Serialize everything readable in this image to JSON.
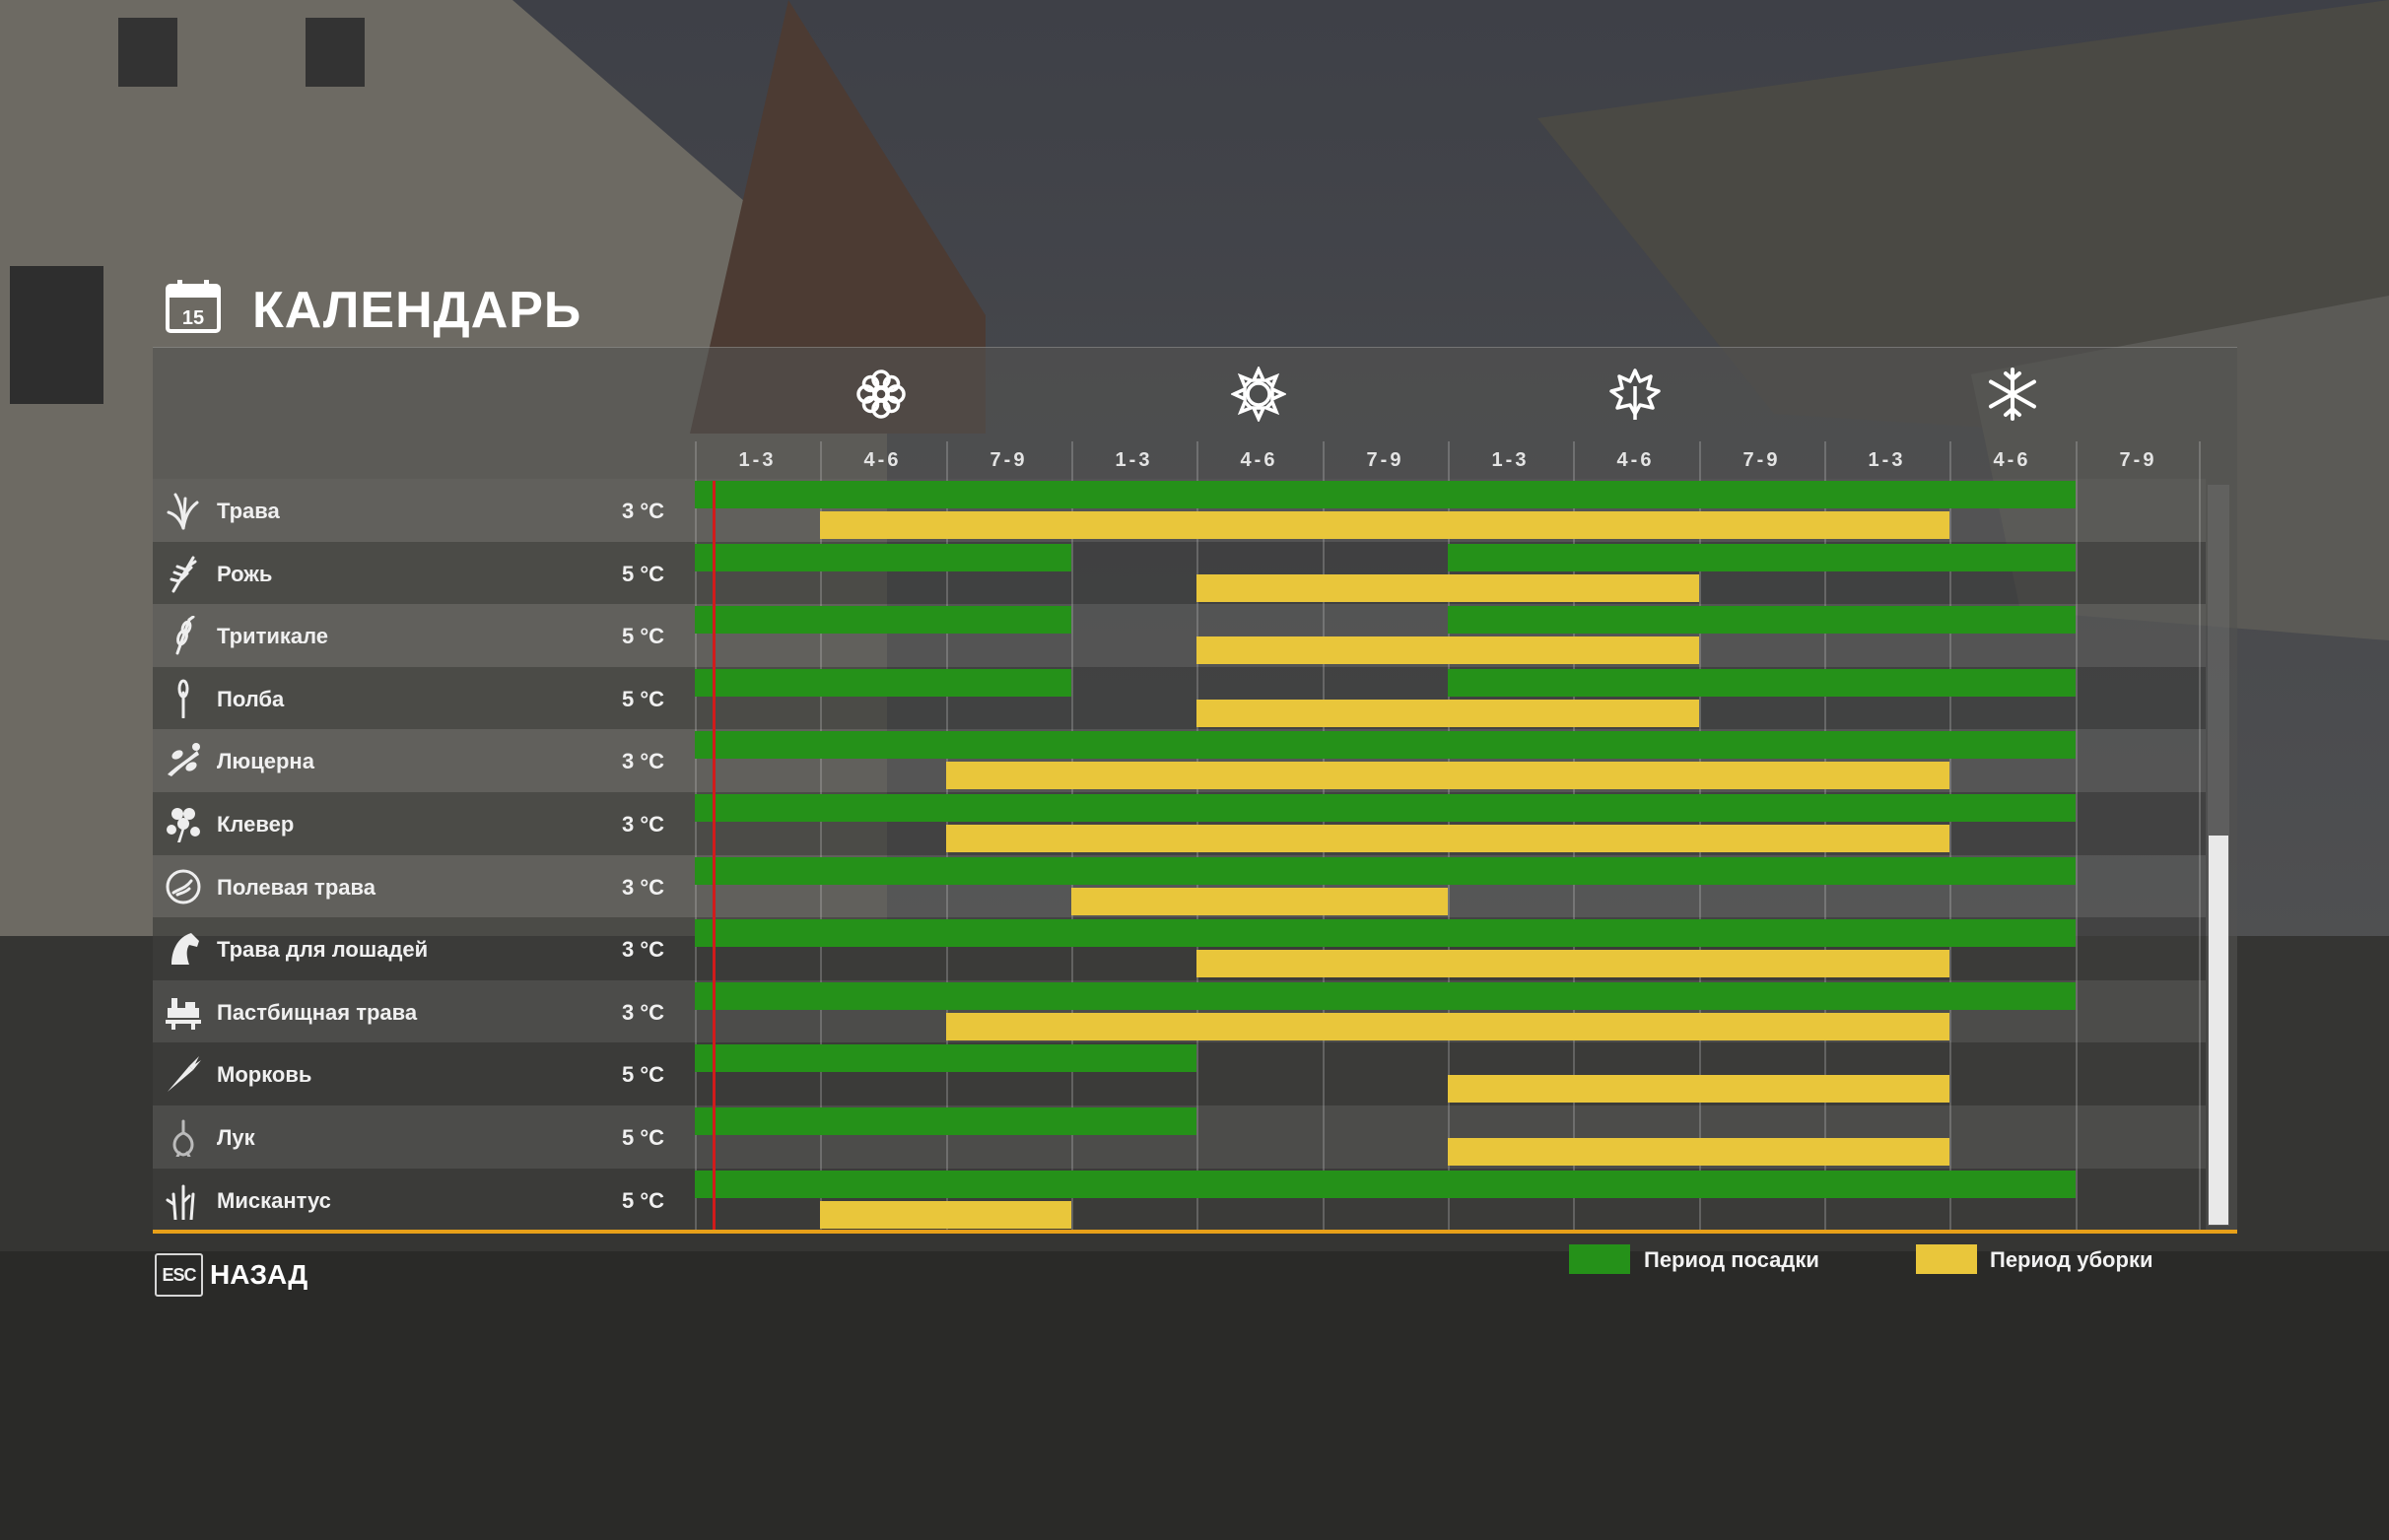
{
  "page": {
    "title": "КАЛЕНДАРЬ",
    "title_icon": "calendar-icon",
    "calendar_icon_day": "15",
    "back_key": "ESC",
    "back_label": "НАЗАД"
  },
  "seasons": [
    {
      "icon": "spring-flower-icon",
      "periods": [
        "1-3",
        "4-6",
        "7-9"
      ]
    },
    {
      "icon": "summer-sun-icon",
      "periods": [
        "1-3",
        "4-6",
        "7-9"
      ]
    },
    {
      "icon": "autumn-leaf-icon",
      "periods": [
        "1-3",
        "4-6",
        "7-9"
      ]
    },
    {
      "icon": "winter-snowflake-icon",
      "periods": [
        "1-3",
        "4-6",
        "7-9"
      ]
    }
  ],
  "colors": {
    "planting": "#259119",
    "harvest": "#e9c63b",
    "current_period_marker": "#d21b1b",
    "panel_bottom_border": "#e7a019"
  },
  "current_period_index": 0,
  "crops": [
    {
      "name": "Трава",
      "temp": "3 °C",
      "icon": "grass-icon",
      "planting": [
        [
          0,
          10
        ]
      ],
      "harvest": [
        [
          1,
          9
        ]
      ]
    },
    {
      "name": "Рожь",
      "temp": "5 °C",
      "icon": "rye-icon",
      "planting": [
        [
          0,
          2
        ],
        [
          6,
          10
        ]
      ],
      "harvest": [
        [
          4,
          7
        ]
      ]
    },
    {
      "name": "Тритикале",
      "temp": "5 °C",
      "icon": "triticale-icon",
      "planting": [
        [
          0,
          2
        ],
        [
          6,
          10
        ]
      ],
      "harvest": [
        [
          4,
          7
        ]
      ]
    },
    {
      "name": "Полба",
      "temp": "5 °C",
      "icon": "spelt-icon",
      "planting": [
        [
          0,
          2
        ],
        [
          6,
          10
        ]
      ],
      "harvest": [
        [
          4,
          7
        ]
      ]
    },
    {
      "name": "Люцерна",
      "temp": "3 °C",
      "icon": "alfalfa-icon",
      "planting": [
        [
          0,
          10
        ]
      ],
      "harvest": [
        [
          2,
          9
        ]
      ]
    },
    {
      "name": "Клевер",
      "temp": "3 °C",
      "icon": "clover-icon",
      "planting": [
        [
          0,
          10
        ]
      ],
      "harvest": [
        [
          2,
          9
        ]
      ]
    },
    {
      "name": "Полевая трава",
      "temp": "3 °C",
      "icon": "field-grass-icon",
      "planting": [
        [
          0,
          10
        ]
      ],
      "harvest": [
        [
          3,
          5
        ]
      ]
    },
    {
      "name": "Трава для лошадей",
      "temp": "3 °C",
      "icon": "horse-grass-icon",
      "planting": [
        [
          0,
          10
        ]
      ],
      "harvest": [
        [
          4,
          9
        ]
      ]
    },
    {
      "name": "Пастбищная трава",
      "temp": "3 °C",
      "icon": "pasture-grass-icon",
      "planting": [
        [
          0,
          10
        ]
      ],
      "harvest": [
        [
          2,
          9
        ]
      ]
    },
    {
      "name": "Морковь",
      "temp": "5 °C",
      "icon": "carrot-icon",
      "planting": [
        [
          0,
          3
        ]
      ],
      "harvest": [
        [
          6,
          9
        ]
      ]
    },
    {
      "name": "Лук",
      "temp": "5 °C",
      "icon": "onion-icon",
      "planting": [
        [
          0,
          3
        ]
      ],
      "harvest": [
        [
          6,
          9
        ]
      ]
    },
    {
      "name": "Мискантус",
      "temp": "5 °C",
      "icon": "miscanthus-icon",
      "planting": [
        [
          0,
          10
        ]
      ],
      "harvest": [
        [
          1,
          2
        ]
      ]
    }
  ],
  "legend": [
    {
      "label": "Период посадки",
      "color": "#259119"
    },
    {
      "label": "Период уборки",
      "color": "#e9c63b"
    }
  ]
}
